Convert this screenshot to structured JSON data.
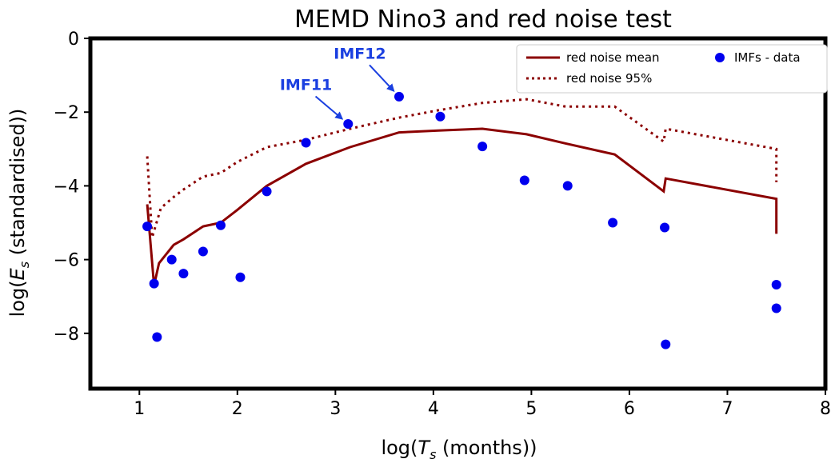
{
  "chart_data": {
    "type": "line",
    "title": "MEMD Nino3 and red noise test",
    "xlabel": "log(T_s (months))",
    "ylabel": "log(E_s (standardised))",
    "xlim": [
      0.5,
      8.0
    ],
    "ylim": [
      -9.5,
      0
    ],
    "xticks": [
      1,
      2,
      3,
      4,
      5,
      6,
      7,
      8
    ],
    "yticks": [
      0,
      -2,
      -4,
      -6,
      -8
    ],
    "grid": false,
    "legend_position": "top-right",
    "colors": {
      "red_noise": "#8b0000",
      "imfs": "#0000ee",
      "annotation": "#1a3fe0"
    },
    "series": [
      {
        "name": "red noise mean",
        "style": "solid",
        "points": [
          [
            1.08,
            -4.5
          ],
          [
            1.15,
            -6.7
          ],
          [
            1.2,
            -6.1
          ],
          [
            1.35,
            -5.6
          ],
          [
            1.45,
            -5.45
          ],
          [
            1.65,
            -5.1
          ],
          [
            1.83,
            -5.0
          ],
          [
            2.0,
            -4.65
          ],
          [
            2.3,
            -4.0
          ],
          [
            2.7,
            -3.4
          ],
          [
            3.15,
            -2.95
          ],
          [
            3.65,
            -2.55
          ],
          [
            4.05,
            -2.5
          ],
          [
            4.5,
            -2.45
          ],
          [
            4.95,
            -2.6
          ],
          [
            5.35,
            -2.85
          ],
          [
            5.85,
            -3.15
          ],
          [
            6.35,
            -4.15
          ],
          [
            6.37,
            -3.8
          ],
          [
            7.5,
            -4.35
          ],
          [
            7.5,
            -5.3
          ]
        ]
      },
      {
        "name": "red noise 95%",
        "style": "dotted",
        "points": [
          [
            1.08,
            -3.2
          ],
          [
            1.13,
            -5.4
          ],
          [
            1.22,
            -4.6
          ],
          [
            1.35,
            -4.3
          ],
          [
            1.45,
            -4.1
          ],
          [
            1.65,
            -3.75
          ],
          [
            1.83,
            -3.65
          ],
          [
            2.0,
            -3.35
          ],
          [
            2.3,
            -2.95
          ],
          [
            2.7,
            -2.75
          ],
          [
            3.15,
            -2.45
          ],
          [
            3.65,
            -2.15
          ],
          [
            4.05,
            -1.95
          ],
          [
            4.5,
            -1.75
          ],
          [
            4.95,
            -1.65
          ],
          [
            5.35,
            -1.85
          ],
          [
            5.85,
            -1.85
          ],
          [
            6.35,
            -2.8
          ],
          [
            6.37,
            -2.45
          ],
          [
            7.5,
            -3.0
          ],
          [
            7.5,
            -3.9
          ]
        ]
      },
      {
        "name": "IMFs - data",
        "style": "scatter",
        "points": [
          [
            1.08,
            -5.1
          ],
          [
            1.15,
            -6.65
          ],
          [
            1.18,
            -8.1
          ],
          [
            1.33,
            -6.0
          ],
          [
            1.45,
            -6.38
          ],
          [
            1.65,
            -5.78
          ],
          [
            1.83,
            -5.07
          ],
          [
            2.03,
            -6.48
          ],
          [
            2.3,
            -4.15
          ],
          [
            2.7,
            -2.83
          ],
          [
            3.13,
            -2.32
          ],
          [
            3.65,
            -1.58
          ],
          [
            4.07,
            -2.12
          ],
          [
            4.5,
            -2.93
          ],
          [
            4.93,
            -3.85
          ],
          [
            5.37,
            -4.0
          ],
          [
            5.83,
            -5.0
          ],
          [
            6.36,
            -5.13
          ],
          [
            6.37,
            -8.3
          ],
          [
            7.5,
            -6.68
          ],
          [
            7.5,
            -7.32
          ]
        ]
      }
    ],
    "annotations": [
      {
        "text": "IMF11",
        "target": [
          3.13,
          -2.32
        ],
        "text_at": [
          2.7,
          -1.4
        ]
      },
      {
        "text": "IMF12",
        "target": [
          3.65,
          -1.58
        ],
        "text_at": [
          3.25,
          -0.55
        ]
      }
    ]
  }
}
